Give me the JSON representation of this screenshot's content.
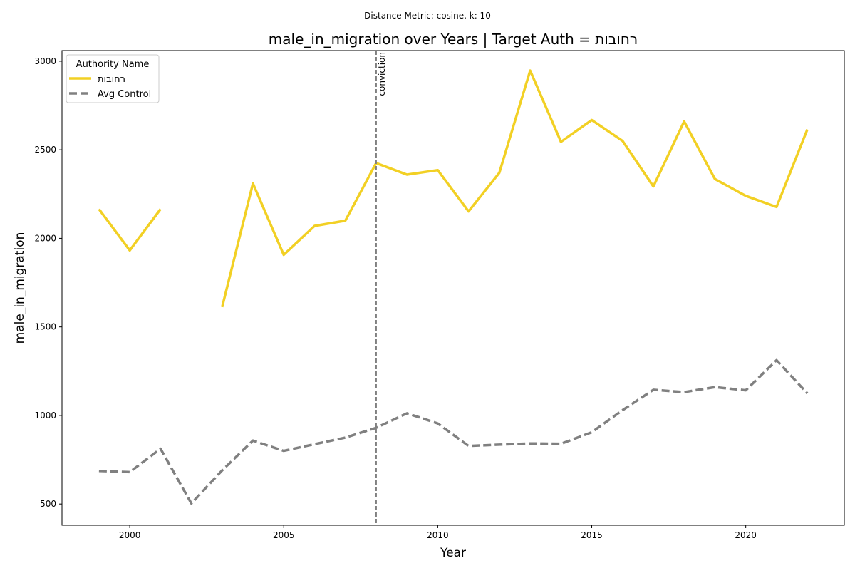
{
  "suptitle": "Distance Metric: cosine, k: 10",
  "chart_data": {
    "type": "line",
    "title": "male_in_migration over Years | Target Auth = רחובות",
    "xlabel": "Year",
    "ylabel": "male_in_migration",
    "xlim": [
      1997.8,
      2023.2
    ],
    "ylim": [
      380,
      3060
    ],
    "xticks": [
      2000,
      2005,
      2010,
      2015,
      2020
    ],
    "yticks": [
      500,
      1000,
      1500,
      2000,
      2500,
      3000
    ],
    "grid": false,
    "legend": {
      "title": "Authority Name",
      "placement": "top-left"
    },
    "x": [
      1999,
      2000,
      2001,
      2002,
      2003,
      2004,
      2005,
      2006,
      2007,
      2008,
      2009,
      2010,
      2011,
      2012,
      2013,
      2014,
      2015,
      2016,
      2017,
      2018,
      2019,
      2020,
      2021,
      2022
    ],
    "series": [
      {
        "name": "רחובות",
        "color": "#f2d024",
        "style": "solid",
        "values": [
          2165,
          1932,
          2165,
          null,
          1612,
          2310,
          1907,
          2070,
          2100,
          2425,
          2360,
          2385,
          2152,
          2370,
          2947,
          2545,
          2668,
          2550,
          2293,
          2660,
          2335,
          2240,
          2177,
          2615
        ]
      },
      {
        "name": "Avg Control",
        "color": "#808080",
        "style": "dashed",
        "values": [
          687,
          680,
          812,
          503,
          690,
          858,
          800,
          838,
          875,
          930,
          1012,
          955,
          828,
          835,
          842,
          840,
          905,
          1030,
          1145,
          1132,
          1160,
          1142,
          1312,
          1125
        ]
      }
    ],
    "annotations": [
      {
        "type": "vline",
        "x": 2008,
        "label": "conviction",
        "color": "#808080",
        "style": "dashed"
      }
    ]
  }
}
